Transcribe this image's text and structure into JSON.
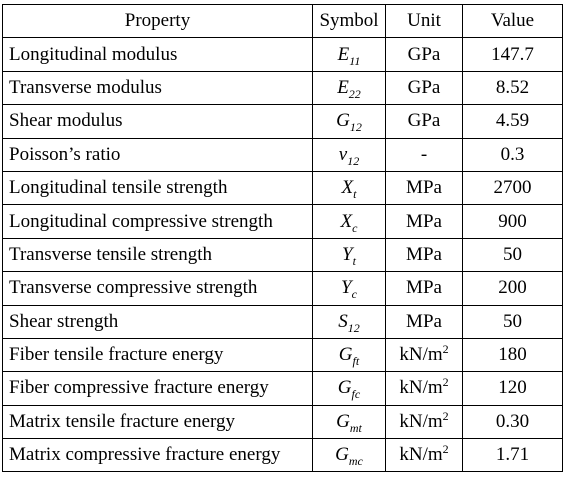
{
  "table": {
    "columns": [
      "Property",
      "Symbol",
      "Unit",
      "Value"
    ],
    "rows": [
      [
        "Longitudinal modulus",
        {
          "base": "E",
          "sub": "11"
        },
        "GPa",
        "147.7"
      ],
      [
        "Transverse modulus",
        {
          "base": "E",
          "sub": "22"
        },
        "GPa",
        "8.52"
      ],
      [
        "Shear modulus",
        {
          "base": "G",
          "sub": "12"
        },
        "GPa",
        "4.59"
      ],
      [
        "Poisson’s ratio",
        {
          "base": "ν",
          "sub": "12"
        },
        "-",
        "0.3"
      ],
      [
        "Longitudinal tensile strength",
        {
          "base": "X",
          "sub": "t"
        },
        "MPa",
        "2700"
      ],
      [
        "Longitudinal compressive strength",
        {
          "base": "X",
          "sub": "c"
        },
        "MPa",
        "900"
      ],
      [
        "Transverse tensile strength",
        {
          "base": "Y",
          "sub": "t"
        },
        "MPa",
        "50"
      ],
      [
        "Transverse compressive strength",
        {
          "base": "Y",
          "sub": "c"
        },
        "MPa",
        "200"
      ],
      [
        "Shear strength",
        {
          "base": "S",
          "sub": "12"
        },
        "MPa",
        "50"
      ],
      [
        "Fiber tensile fracture energy",
        {
          "base": "G",
          "sub": "ft"
        },
        {
          "text": "kN/m",
          "sup": "2"
        },
        "180"
      ],
      [
        "Fiber compressive fracture energy",
        {
          "base": "G",
          "sub": "fc"
        },
        {
          "text": "kN/m",
          "sup": "2"
        },
        "120"
      ],
      [
        "Matrix tensile fracture energy",
        {
          "base": "G",
          "sub": "mt"
        },
        {
          "text": "kN/m",
          "sup": "2"
        },
        "0.30"
      ],
      [
        "Matrix compressive fracture energy",
        {
          "base": "G",
          "sub": "mc"
        },
        {
          "text": "kN/m",
          "sup": "2"
        },
        "1.71"
      ]
    ]
  }
}
